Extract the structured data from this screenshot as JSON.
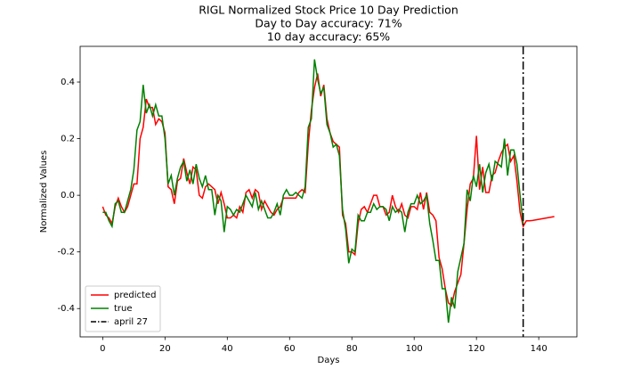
{
  "chart_data": {
    "type": "line",
    "title": "RIGL Normalized Stock Price 10 Day Prediction",
    "subtitle": "Day to Day accuracy: 71%",
    "subtitle2": "10 day accuracy: 65%",
    "x_label": "Days",
    "y_label": "Normalized Values",
    "x": [
      0,
      1,
      2,
      3,
      4,
      5,
      6,
      7,
      8,
      9,
      10,
      11,
      12,
      13,
      14,
      15,
      16,
      17,
      18,
      19,
      20,
      21,
      22,
      23,
      24,
      25,
      26,
      27,
      28,
      29,
      30,
      31,
      32,
      33,
      34,
      35,
      36,
      37,
      38,
      39,
      40,
      41,
      42,
      43,
      44,
      45,
      46,
      47,
      48,
      49,
      50,
      51,
      52,
      53,
      54,
      55,
      56,
      57,
      58,
      59,
      60,
      61,
      62,
      63,
      64,
      65,
      66,
      67,
      68,
      69,
      70,
      71,
      72,
      73,
      74,
      75,
      76,
      77,
      78,
      79,
      80,
      81,
      82,
      83,
      84,
      85,
      86,
      87,
      88,
      89,
      90,
      91,
      92,
      93,
      94,
      95,
      96,
      97,
      98,
      99,
      100,
      101,
      102,
      103,
      104,
      105,
      106,
      107,
      108,
      109,
      110,
      111,
      112,
      113,
      114,
      115,
      116,
      117,
      118,
      119,
      120,
      121,
      122,
      123,
      124,
      125,
      126,
      127,
      128,
      129,
      130,
      131,
      132,
      133,
      134,
      135,
      136,
      137,
      138,
      139,
      140,
      141,
      142,
      143,
      144,
      145
    ],
    "series": [
      {
        "name": "predicted",
        "color": "#ff0000",
        "values": [
          -0.04,
          -0.07,
          -0.08,
          -0.1,
          -0.04,
          -0.01,
          -0.04,
          -0.06,
          -0.04,
          0.0,
          0.04,
          0.04,
          0.2,
          0.24,
          0.34,
          0.31,
          0.31,
          0.25,
          0.27,
          0.26,
          0.22,
          0.03,
          0.02,
          -0.03,
          0.05,
          0.06,
          0.13,
          0.08,
          0.04,
          0.1,
          0.09,
          0.0,
          -0.01,
          0.03,
          0.04,
          0.03,
          0.02,
          -0.03,
          0.01,
          -0.03,
          -0.08,
          -0.08,
          -0.07,
          -0.08,
          -0.04,
          -0.06,
          0.01,
          0.02,
          -0.01,
          0.02,
          0.01,
          -0.05,
          -0.02,
          -0.04,
          -0.06,
          -0.07,
          -0.05,
          -0.04,
          -0.01,
          -0.01,
          -0.01,
          -0.01,
          -0.01,
          0.01,
          0.02,
          0.01,
          0.18,
          0.3,
          0.38,
          0.43,
          0.35,
          0.39,
          0.27,
          0.22,
          0.19,
          0.18,
          0.17,
          -0.07,
          -0.1,
          -0.2,
          -0.2,
          -0.21,
          -0.1,
          -0.05,
          -0.04,
          -0.06,
          -0.03,
          0.0,
          0.0,
          -0.04,
          -0.04,
          -0.07,
          -0.06,
          0.0,
          -0.04,
          -0.06,
          -0.03,
          -0.07,
          -0.08,
          -0.04,
          -0.04,
          -0.05,
          0.01,
          -0.05,
          0.01,
          -0.06,
          -0.07,
          -0.09,
          -0.22,
          -0.26,
          -0.33,
          -0.38,
          -0.39,
          -0.34,
          -0.31,
          -0.28,
          -0.17,
          -0.05,
          0.04,
          0.06,
          0.21,
          0.02,
          0.1,
          0.01,
          0.01,
          0.07,
          0.08,
          0.12,
          0.15,
          0.17,
          0.18,
          0.12,
          0.14,
          0.05,
          -0.06,
          -0.11,
          -0.09,
          -0.09,
          -0.089,
          -0.087,
          -0.085,
          -0.083,
          -0.081,
          -0.079,
          -0.077,
          -0.075
        ]
      },
      {
        "name": "true",
        "color": "#008000",
        "values": [
          -0.06,
          -0.06,
          -0.09,
          -0.11,
          -0.03,
          -0.02,
          -0.06,
          -0.06,
          -0.02,
          0.02,
          0.09,
          0.23,
          0.26,
          0.39,
          0.29,
          0.32,
          0.28,
          0.32,
          0.28,
          0.28,
          0.2,
          0.04,
          0.07,
          0.0,
          0.06,
          0.1,
          0.12,
          0.05,
          0.09,
          0.04,
          0.11,
          0.06,
          0.03,
          0.07,
          0.02,
          0.02,
          -0.07,
          0.0,
          -0.02,
          -0.13,
          -0.04,
          -0.05,
          -0.07,
          -0.05,
          -0.06,
          -0.03,
          0.0,
          -0.02,
          -0.04,
          0.01,
          -0.05,
          -0.02,
          -0.05,
          -0.08,
          -0.08,
          -0.06,
          -0.03,
          -0.07,
          0.0,
          0.02,
          0.0,
          0.0,
          0.01,
          0.0,
          -0.01,
          0.03,
          0.24,
          0.27,
          0.48,
          0.41,
          0.36,
          0.38,
          0.25,
          0.22,
          0.17,
          0.18,
          0.14,
          -0.05,
          -0.12,
          -0.24,
          -0.19,
          -0.2,
          -0.07,
          -0.09,
          -0.09,
          -0.06,
          -0.06,
          -0.03,
          -0.05,
          -0.04,
          -0.04,
          -0.05,
          -0.09,
          -0.04,
          -0.06,
          -0.05,
          -0.06,
          -0.13,
          -0.06,
          -0.03,
          -0.03,
          0.0,
          -0.03,
          -0.02,
          0.0,
          -0.1,
          -0.16,
          -0.23,
          -0.23,
          -0.33,
          -0.33,
          -0.45,
          -0.36,
          -0.4,
          -0.27,
          -0.22,
          -0.17,
          0.02,
          -0.02,
          0.07,
          0.03,
          0.11,
          0.01,
          0.08,
          0.11,
          0.05,
          0.12,
          0.11,
          0.1,
          0.2,
          0.07,
          0.16,
          0.16,
          0.11,
          0.0,
          -0.1,
          null,
          null,
          null,
          null,
          null,
          null,
          null,
          null,
          null,
          null
        ]
      }
    ],
    "vlines": [
      {
        "name": "april 27",
        "x": 135,
        "color": "#000000"
      }
    ],
    "xlim": [
      -7.25,
      152.25
    ],
    "ylim": [
      -0.5,
      0.526
    ],
    "xticks": [
      0,
      20,
      40,
      60,
      80,
      100,
      120,
      140
    ],
    "yticks": [
      -0.4,
      -0.2,
      {
        "value": 0,
        "label": "0.0"
      },
      0.2,
      0.4
    ],
    "legend": "lower left"
  }
}
